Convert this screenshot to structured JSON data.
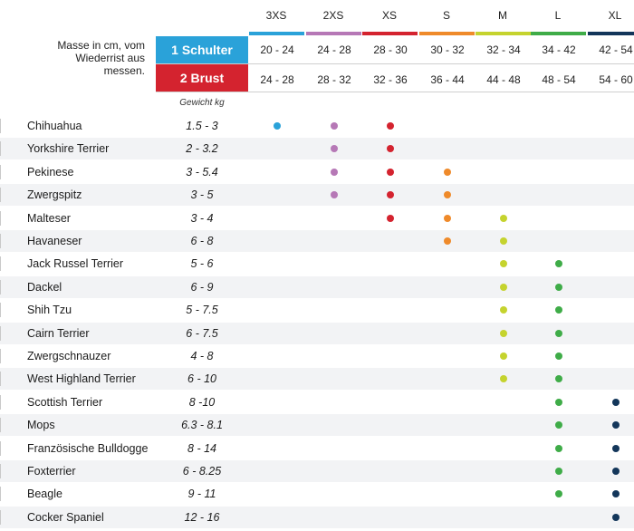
{
  "sizes": [
    {
      "label": "3XS",
      "color": "#2aa2d9"
    },
    {
      "label": "2XS",
      "color": "#b678b6"
    },
    {
      "label": "XS",
      "color": "#d4232f"
    },
    {
      "label": "S",
      "color": "#ef8a2a"
    },
    {
      "label": "M",
      "color": "#c5d32e"
    },
    {
      "label": "L",
      "color": "#3fac48"
    },
    {
      "label": "XL",
      "color": "#13365a"
    }
  ],
  "measure_note": "Masse in cm, vom Wiederrist aus messen.",
  "measurements": [
    {
      "name": "1 Schulter",
      "color": "#2aa2d9",
      "ranges": [
        "20 - 24",
        "24 - 28",
        "28 - 30",
        "30 - 32",
        "32 - 34",
        "34 - 42",
        "42 - 54"
      ]
    },
    {
      "name": "2 Brust",
      "color": "#d4232f",
      "ranges": [
        "24 - 28",
        "28 - 32",
        "32 - 36",
        "36 - 44",
        "44 - 48",
        "48 - 54",
        "54 - 60"
      ]
    }
  ],
  "weight_header": "Gewicht kg",
  "breeds": [
    {
      "name": "Chihuahua",
      "weight": "1.5 - 3",
      "sizes": [
        0,
        1,
        2
      ]
    },
    {
      "name": "Yorkshire Terrier",
      "weight": "2 - 3.2",
      "sizes": [
        1,
        2
      ]
    },
    {
      "name": "Pekinese",
      "weight": "3 - 5.4",
      "sizes": [
        1,
        2,
        3
      ]
    },
    {
      "name": "Zwergspitz",
      "weight": "3 - 5",
      "sizes": [
        1,
        2,
        3
      ]
    },
    {
      "name": "Malteser",
      "weight": "3 - 4",
      "sizes": [
        2,
        3,
        4
      ]
    },
    {
      "name": "Havaneser",
      "weight": "6 - 8",
      "sizes": [
        3,
        4
      ]
    },
    {
      "name": "Jack Russel Terrier",
      "weight": "5 - 6",
      "sizes": [
        4,
        5
      ]
    },
    {
      "name": "Dackel",
      "weight": "6 - 9",
      "sizes": [
        4,
        5
      ]
    },
    {
      "name": "Shih Tzu",
      "weight": "5 - 7.5",
      "sizes": [
        4,
        5
      ]
    },
    {
      "name": "Cairn Terrier",
      "weight": "6 - 7.5",
      "sizes": [
        4,
        5
      ]
    },
    {
      "name": "Zwergschnauzer",
      "weight": "4 - 8",
      "sizes": [
        4,
        5
      ]
    },
    {
      "name": "West Highland Terrier",
      "weight": "6 - 10",
      "sizes": [
        4,
        5
      ]
    },
    {
      "name": "Scottish Terrier",
      "weight": "8 -10",
      "sizes": [
        5,
        6
      ]
    },
    {
      "name": "Mops",
      "weight": "6.3 - 8.1",
      "sizes": [
        5,
        6
      ]
    },
    {
      "name": "Französische Bulldogge",
      "weight": "8 - 14",
      "sizes": [
        5,
        6
      ]
    },
    {
      "name": "Foxterrier",
      "weight": "6 - 8.25",
      "sizes": [
        5,
        6
      ]
    },
    {
      "name": "Beagle",
      "weight": "9 - 11",
      "sizes": [
        5,
        6
      ]
    },
    {
      "name": "Cocker Spaniel",
      "weight": "12 - 16",
      "sizes": [
        6
      ]
    }
  ]
}
